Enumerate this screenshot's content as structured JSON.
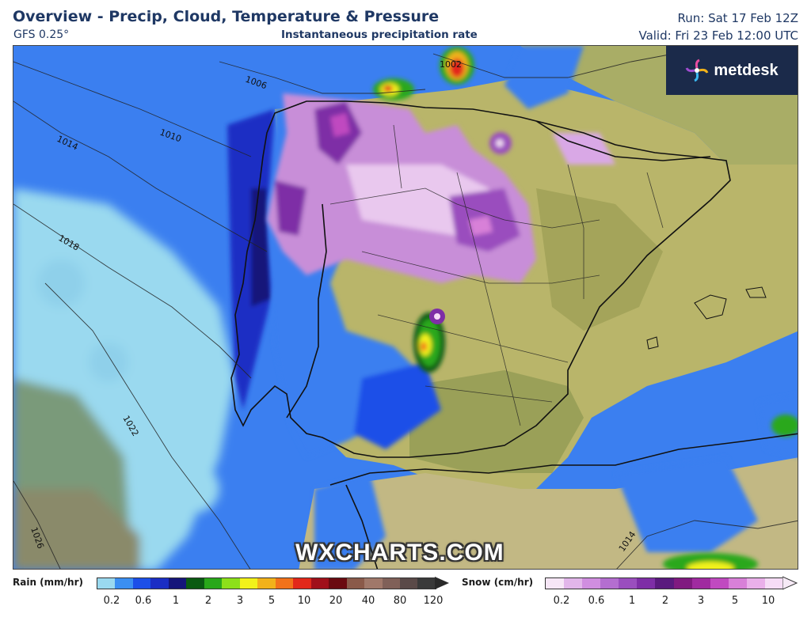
{
  "header": {
    "title": "Overview - Precip, Cloud, Temperature & Pressure",
    "model": "GFS 0.25°",
    "subtitle": "Instantaneous precipitation rate",
    "run": "Run: Sat 17 Feb 12Z",
    "valid": "Valid: Fri 23 Feb 12:00 UTC"
  },
  "branding": {
    "logo_text": "metdesk",
    "watermark": "WXCHARTS.COM",
    "logo_icon": "pinwheel-icon"
  },
  "isobars": [
    "1002",
    "1006",
    "1010",
    "1014",
    "1018",
    "1022",
    "1026",
    "1014"
  ],
  "legend": {
    "rain": {
      "label": "Rain (mm/hr)",
      "ticks": [
        "0.2",
        "0.6",
        "1",
        "2",
        "3",
        "5",
        "10",
        "20",
        "40",
        "80",
        "120"
      ],
      "colors": [
        "#9ad9ef",
        "#3b8ff2",
        "#1c4fe8",
        "#1b2ec4",
        "#15157a",
        "#0a5a12",
        "#29a81a",
        "#8de01a",
        "#f2f21a",
        "#f2b21a",
        "#f2721a",
        "#e2281a",
        "#a0101a",
        "#6a0a10",
        "#8a5a4a",
        "#a0786a",
        "#806058",
        "#5a4a48",
        "#3a3a3a"
      ]
    },
    "snow": {
      "label": "Snow (cm/hr)",
      "ticks": [
        "0.2",
        "0.6",
        "1",
        "2",
        "3",
        "5",
        "10"
      ],
      "colors": [
        "#f6e6f6",
        "#e2b6ea",
        "#d08ee0",
        "#b46ed0",
        "#9a4ebe",
        "#7e2ea6",
        "#5a1a7e",
        "#801a80",
        "#a02aa0",
        "#c04ac0",
        "#d880d8",
        "#eab0ea",
        "#f6dcf6"
      ]
    }
  },
  "colors": {
    "ocean_deep": "#1c4fe8",
    "ocean_light": "#9ad9ef",
    "land": "#b8b86a",
    "snow": "#c88ed8",
    "header_text": "#1f3864"
  }
}
